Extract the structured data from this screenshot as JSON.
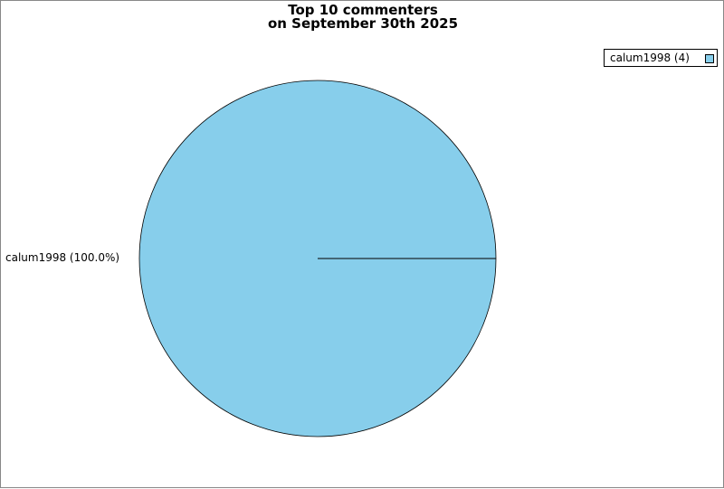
{
  "chart_data": {
    "type": "pie",
    "title": [
      "Top 10 commenters",
      "on September 30th 2025"
    ],
    "slices": [
      {
        "label": "calum1998",
        "value": 4,
        "percent": 100.0,
        "color": "#87ceeb"
      }
    ],
    "legend": {
      "placement": "top-right",
      "entries": [
        "calum1998 (4)"
      ]
    },
    "slice_labels": [
      "calum1998 (100.0%)"
    ]
  }
}
